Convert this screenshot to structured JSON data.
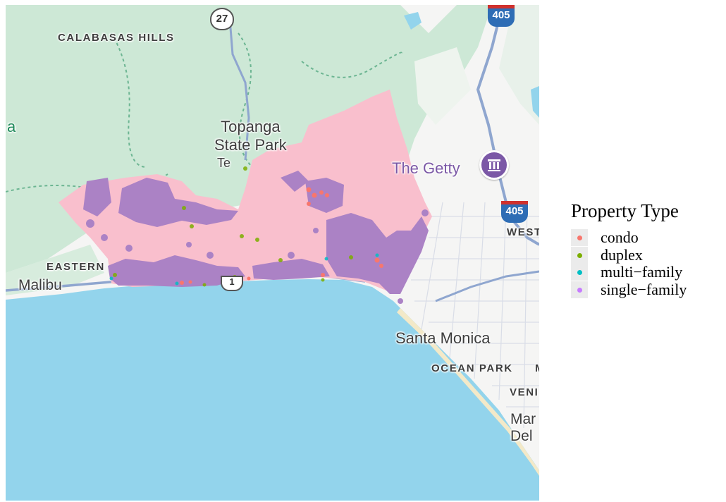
{
  "map": {
    "place_labels": {
      "calabasas_hills": "CALABASAS HILLS",
      "topanga_line1": "Topanga",
      "topanga_line2": "State Park",
      "topanga_clip": "Te",
      "the_getty": "The Getty",
      "eastern": "EASTERN",
      "malibu": "Malibu",
      "santa_monica": "Santa Monica",
      "ocean_park": "OCEAN PARK",
      "ocean_park_next": "M",
      "west": "WEST",
      "venice": "VENI",
      "marina_line1": "Mar",
      "marina_line2": "Del",
      "left_edge": "a"
    },
    "route_shields": {
      "ca_27": "27",
      "i_405_top": "405",
      "i_405_right": "405",
      "ca_1": "1"
    },
    "colors": {
      "water": "#93d4ec",
      "land": "#f5f5f4",
      "park": "#cde8d6",
      "fire_zone": "#f9bfcd",
      "highway": "#8fa6cf"
    }
  },
  "legend": {
    "title": "Property Type",
    "items": [
      {
        "label": "condo",
        "color": "#f8766d"
      },
      {
        "label": "duplex",
        "color": "#7cae00"
      },
      {
        "label": "multi−family",
        "color": "#00bfc4"
      },
      {
        "label": "single−family",
        "color": "#c77cff"
      }
    ]
  },
  "points_color_rendered": {
    "single_family_fill": "#ab82c5"
  }
}
